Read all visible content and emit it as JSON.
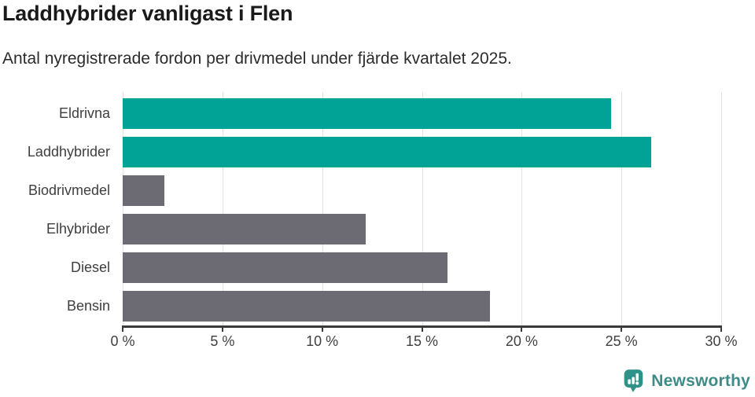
{
  "header": {
    "title": "Laddhybrider vanligast i Flen",
    "subtitle": "Antal nyregistrerade fordon per drivmedel under fjärde kvartalet 2025."
  },
  "chart_data": {
    "type": "bar",
    "orientation": "horizontal",
    "title": "Laddhybrider vanligast i Flen",
    "subtitle": "Antal nyregistrerade fordon per drivmedel under fjärde kvartalet 2025.",
    "categories": [
      "Eldrivna",
      "Laddhybrider",
      "Biodrivmedel",
      "Elhybrider",
      "Diesel",
      "Bensin"
    ],
    "values": [
      24.5,
      26.5,
      2.1,
      12.2,
      16.3,
      18.4
    ],
    "unit": "%",
    "xlabel": "",
    "ylabel": "",
    "xlim": [
      0,
      30
    ],
    "xticks": [
      0,
      5,
      10,
      15,
      20,
      25,
      30
    ],
    "xtick_labels": [
      "0 %",
      "5 %",
      "10 %",
      "15 %",
      "20 %",
      "25 %",
      "30 %"
    ],
    "grid": "vertical",
    "legend": "none",
    "bar_colors": [
      "#00a396",
      "#00a396",
      "#6c6a72",
      "#6c6a72",
      "#6c6a72",
      "#6c6a72"
    ],
    "highlight_color": "#00a396",
    "base_color": "#6c6a72",
    "gridline_color": "#e3e3e3",
    "axis_color": "#3a3a3a",
    "label_color": "#3f3f3f"
  },
  "footer": {
    "brand": "Newsworthy",
    "brand_color": "#3e8b88",
    "icon_color": "#2f9288"
  }
}
